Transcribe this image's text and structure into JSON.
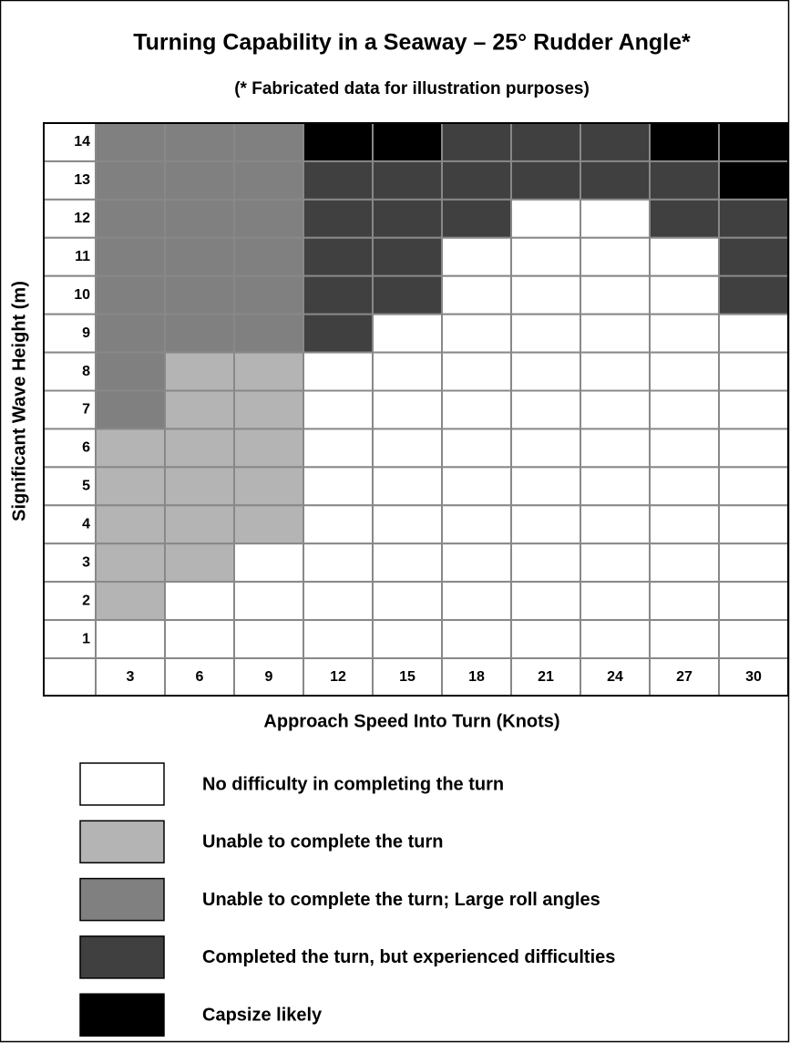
{
  "chart_data": {
    "type": "heatmap",
    "title": "Turning Capability in a Seaway – 25° Rudder Angle*",
    "subtitle": "(* Fabricated data for illustration purposes)",
    "x_label": "Approach Speed Into Turn (Knots)",
    "y_label": "Significant Wave Height (m)",
    "x": [
      3,
      6,
      9,
      12,
      15,
      18,
      21,
      24,
      27,
      30
    ],
    "y": [
      14,
      13,
      12,
      11,
      10,
      9,
      8,
      7,
      6,
      5,
      4,
      3,
      2,
      1
    ],
    "cells": [
      [
        "#808080",
        "#808080",
        "#808080",
        "#000000",
        "#000000",
        "#404040",
        "#404040",
        "#404040",
        "#000000",
        "#000000"
      ],
      [
        "#808080",
        "#808080",
        "#808080",
        "#404040",
        "#404040",
        "#404040",
        "#404040",
        "#404040",
        "#404040",
        "#000000"
      ],
      [
        "#808080",
        "#808080",
        "#808080",
        "#404040",
        "#404040",
        "#404040",
        "#ffffff",
        "#ffffff",
        "#404040",
        "#404040"
      ],
      [
        "#808080",
        "#808080",
        "#808080",
        "#404040",
        "#404040",
        "#ffffff",
        "#ffffff",
        "#ffffff",
        "#ffffff",
        "#404040"
      ],
      [
        "#808080",
        "#808080",
        "#808080",
        "#404040",
        "#404040",
        "#ffffff",
        "#ffffff",
        "#ffffff",
        "#ffffff",
        "#404040"
      ],
      [
        "#808080",
        "#808080",
        "#808080",
        "#404040",
        "#ffffff",
        "#ffffff",
        "#ffffff",
        "#ffffff",
        "#ffffff",
        "#ffffff"
      ],
      [
        "#808080",
        "#b4b4b4",
        "#b4b4b4",
        "#ffffff",
        "#ffffff",
        "#ffffff",
        "#ffffff",
        "#ffffff",
        "#ffffff",
        "#ffffff"
      ],
      [
        "#808080",
        "#b4b4b4",
        "#b4b4b4",
        "#ffffff",
        "#ffffff",
        "#ffffff",
        "#ffffff",
        "#ffffff",
        "#ffffff",
        "#ffffff"
      ],
      [
        "#b4b4b4",
        "#b4b4b4",
        "#b4b4b4",
        "#ffffff",
        "#ffffff",
        "#ffffff",
        "#ffffff",
        "#ffffff",
        "#ffffff",
        "#ffffff"
      ],
      [
        "#b4b4b4",
        "#b4b4b4",
        "#b4b4b4",
        "#ffffff",
        "#ffffff",
        "#ffffff",
        "#ffffff",
        "#ffffff",
        "#ffffff",
        "#ffffff"
      ],
      [
        "#b4b4b4",
        "#b4b4b4",
        "#b4b4b4",
        "#ffffff",
        "#ffffff",
        "#ffffff",
        "#ffffff",
        "#ffffff",
        "#ffffff",
        "#ffffff"
      ],
      [
        "#b4b4b4",
        "#b4b4b4",
        "#ffffff",
        "#ffffff",
        "#ffffff",
        "#ffffff",
        "#ffffff",
        "#ffffff",
        "#ffffff",
        "#ffffff"
      ],
      [
        "#b4b4b4",
        "#ffffff",
        "#ffffff",
        "#ffffff",
        "#ffffff",
        "#ffffff",
        "#ffffff",
        "#ffffff",
        "#ffffff",
        "#ffffff"
      ],
      [
        "#ffffff",
        "#ffffff",
        "#ffffff",
        "#ffffff",
        "#ffffff",
        "#ffffff",
        "#ffffff",
        "#ffffff",
        "#ffffff",
        "#ffffff"
      ]
    ],
    "legend": [
      {
        "label": "No difficulty in completing the turn",
        "color": "#ffffff"
      },
      {
        "label": "Unable to complete the turn",
        "color": "#b4b4b4"
      },
      {
        "label": "Unable to complete the turn; Large roll angles",
        "color": "#808080"
      },
      {
        "label": "Completed the turn, but experienced difficulties",
        "color": "#404040"
      },
      {
        "label": "Capsize likely",
        "color": "#000000"
      }
    ]
  }
}
